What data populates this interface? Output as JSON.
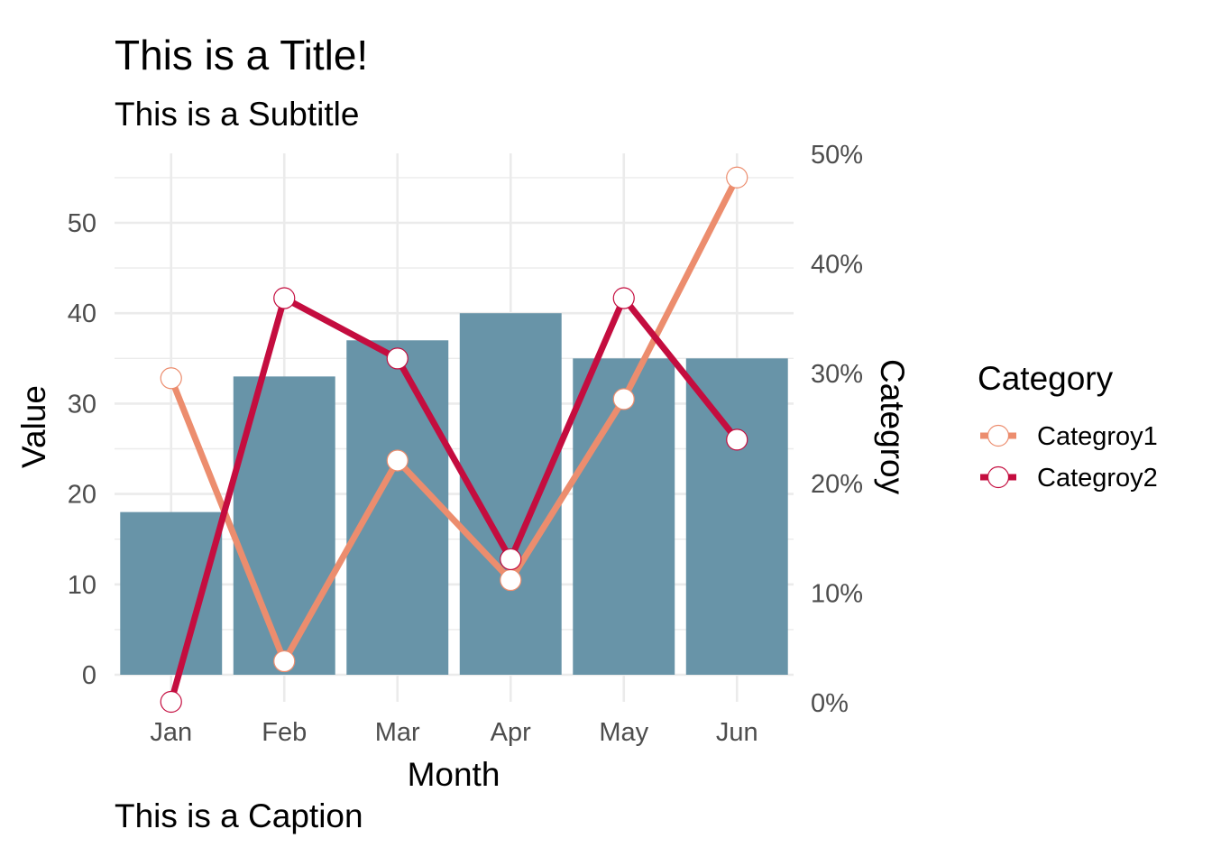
{
  "chart_data": {
    "type": "bar",
    "title": "This is a Title!",
    "subtitle": "This is a Subtitle",
    "caption": "This is a Caption",
    "xlabel": "Month",
    "ylabel": "Value",
    "y2label": "Categroy",
    "categories": [
      "Jan",
      "Feb",
      "Mar",
      "Apr",
      "May",
      "Jun"
    ],
    "bar_values": [
      18,
      33,
      37,
      40,
      35,
      35
    ],
    "bar_color": "#6894a8",
    "ylim": [
      0,
      57.5
    ],
    "y_ticks": [
      0,
      10,
      20,
      30,
      40,
      50
    ],
    "y_tick_labels": [
      "0",
      "10",
      "20",
      "30",
      "40",
      "50"
    ],
    "y2lim": [
      0,
      0.5
    ],
    "y2_ticks": [
      0,
      0.1,
      0.2,
      0.3,
      0.4,
      0.5
    ],
    "y2_tick_labels": [
      "0%",
      "10%",
      "20%",
      "30%",
      "40%",
      "50%"
    ],
    "series": [
      {
        "name": "Categroy1",
        "color": "#ec8d6e",
        "values": [
          0.295,
          0.037,
          0.22,
          0.111,
          0.276,
          0.478
        ]
      },
      {
        "name": "Categroy2",
        "color": "#c40d3f",
        "values": [
          0.0,
          0.368,
          0.313,
          0.13,
          0.368,
          0.239
        ]
      }
    ],
    "legend": {
      "title": "Category",
      "position": "right"
    },
    "grid": true
  }
}
